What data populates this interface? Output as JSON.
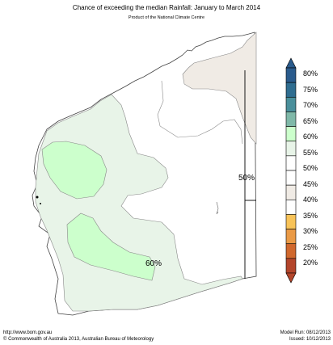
{
  "title": "Chance of exceeding the median Rainfall: January to March 2014",
  "subtitle": "Product of the National Climate Centre",
  "colors": {
    "green_light": "#e8f4e8",
    "green_mid": "#ccffcc",
    "beige": "#f0ebe5",
    "outline": "#888888"
  },
  "map": {
    "region": "Western Australia",
    "contour_labels": [
      "50%",
      "60%"
    ]
  },
  "legend": {
    "colors": [
      "#b3452b",
      "#d0682d",
      "#ea9a46",
      "#f8c358",
      "#ffffff",
      "#f0ebe5",
      "#ffffff",
      "#ffffff",
      "#e8f4e8",
      "#ccffcc",
      "#7fb8a8",
      "#4a8f9b",
      "#2f6d90",
      "#2a5b8c"
    ],
    "labels": [
      "80%",
      "75%",
      "70%",
      "65%",
      "60%",
      "55%",
      "50%",
      "45%",
      "40%",
      "35%",
      "30%",
      "25%",
      "20%"
    ]
  },
  "footer": {
    "url": "http://www.bom.gov.au",
    "copyright": "©  Commonwealth of Australia 2013, Australian Bureau of Meteorology",
    "model_run": "Model Run: 08/12/2013",
    "issued": "Issued: 10/12/2013"
  }
}
